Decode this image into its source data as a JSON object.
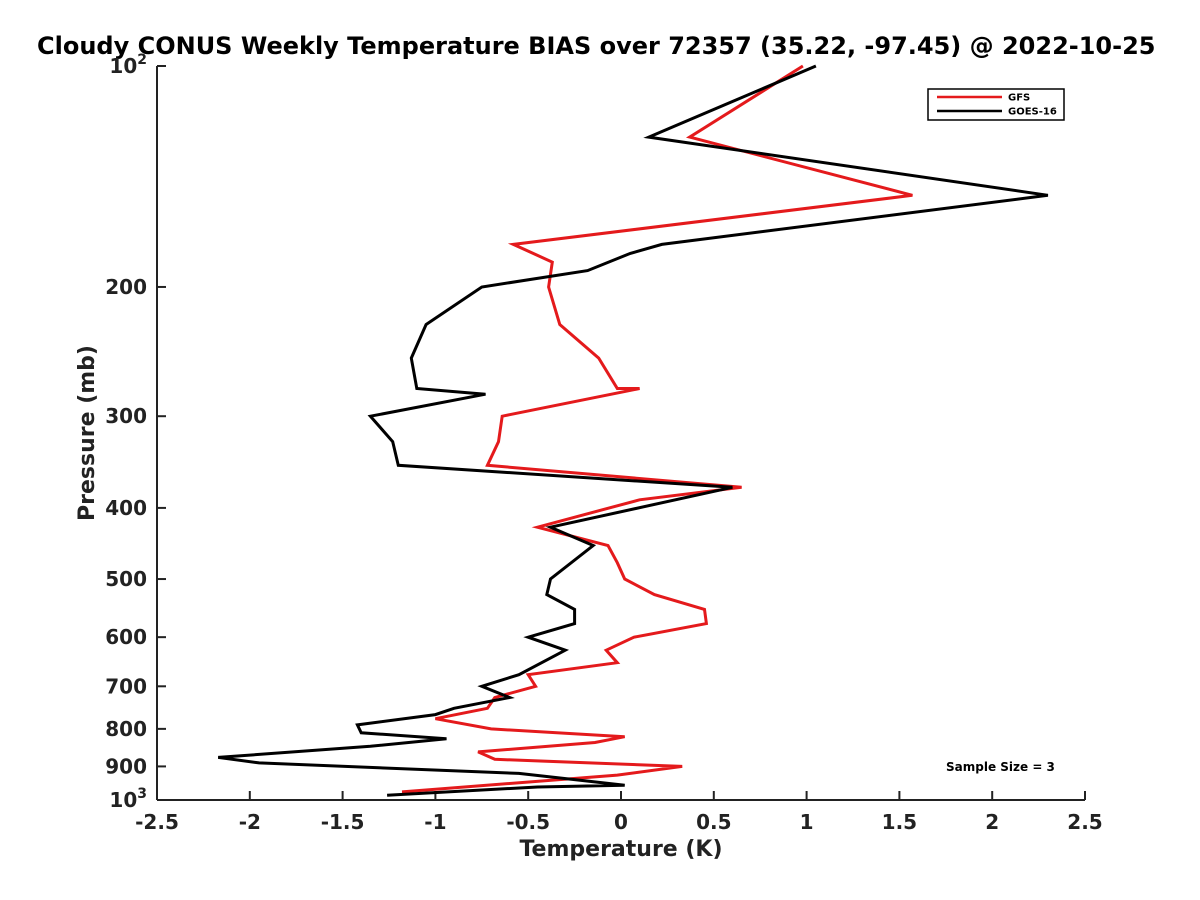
{
  "chart_data": {
    "type": "line",
    "title": "Cloudy CONUS Weekly Temperature BIAS over 72357 (35.22, -97.45) @ 2022-10-25",
    "xlabel": "Temperature (K)",
    "ylabel": "Pressure (mb)",
    "xlim": [
      -2.5,
      2.5
    ],
    "ylim": [
      1000,
      100
    ],
    "yscale": "log",
    "y_reversed": true,
    "grid": false,
    "legend_position": "top-right",
    "x_ticks": [
      "-2.5",
      "-2",
      "-1.5",
      "-1",
      "-0.5",
      "0",
      "0.5",
      "1",
      "1.5",
      "2",
      "2.5"
    ],
    "y_ticks": [
      {
        "value": 100,
        "base": "10",
        "exp": "2"
      },
      {
        "value": 200,
        "label": "200"
      },
      {
        "value": 300,
        "label": "300"
      },
      {
        "value": 400,
        "label": "400"
      },
      {
        "value": 500,
        "label": "500"
      },
      {
        "value": 600,
        "label": "600"
      },
      {
        "value": 700,
        "label": "700"
      },
      {
        "value": 800,
        "label": "800"
      },
      {
        "value": 900,
        "label": "900"
      },
      {
        "value": 1000,
        "base": "10",
        "exp": "3"
      }
    ],
    "series": [
      {
        "name": "GFS",
        "color": "#e41a1c",
        "points": [
          [
            0.98,
            100
          ],
          [
            0.37,
            125
          ],
          [
            1.57,
            150
          ],
          [
            -0.58,
            175
          ],
          [
            -0.37,
            185
          ],
          [
            -0.39,
            200
          ],
          [
            -0.33,
            225
          ],
          [
            -0.12,
            250
          ],
          [
            -0.02,
            275
          ],
          [
            0.1,
            275
          ],
          [
            -0.64,
            300
          ],
          [
            -0.66,
            325
          ],
          [
            -0.72,
            350
          ],
          [
            0.65,
            375
          ],
          [
            0.1,
            390
          ],
          [
            -0.45,
            425
          ],
          [
            -0.07,
            450
          ],
          [
            -0.02,
            475
          ],
          [
            0.02,
            500
          ],
          [
            0.18,
            525
          ],
          [
            0.45,
            550
          ],
          [
            0.46,
            575
          ],
          [
            0.07,
            600
          ],
          [
            -0.08,
            625
          ],
          [
            -0.02,
            650
          ],
          [
            -0.5,
            675
          ],
          [
            -0.46,
            700
          ],
          [
            -0.68,
            725
          ],
          [
            -0.72,
            750
          ],
          [
            -1.0,
            775
          ],
          [
            -0.7,
            800
          ],
          [
            0.02,
            820
          ],
          [
            -0.14,
            835
          ],
          [
            -0.77,
            860
          ],
          [
            -0.68,
            880
          ],
          [
            0.33,
            900
          ],
          [
            -0.02,
            925
          ],
          [
            -1.18,
            975
          ]
        ]
      },
      {
        "name": "GOES-16",
        "color": "#000000",
        "points": [
          [
            1.05,
            100
          ],
          [
            0.15,
            125
          ],
          [
            2.3,
            150
          ],
          [
            0.22,
            175
          ],
          [
            0.05,
            180
          ],
          [
            -0.18,
            190
          ],
          [
            -0.75,
            200
          ],
          [
            -1.05,
            225
          ],
          [
            -1.13,
            250
          ],
          [
            -1.1,
            275
          ],
          [
            -0.73,
            280
          ],
          [
            -1.35,
            300
          ],
          [
            -1.23,
            325
          ],
          [
            -1.2,
            350
          ],
          [
            0.6,
            375
          ],
          [
            -0.38,
            425
          ],
          [
            -0.15,
            450
          ],
          [
            -0.38,
            500
          ],
          [
            -0.4,
            525
          ],
          [
            -0.25,
            550
          ],
          [
            -0.25,
            575
          ],
          [
            -0.5,
            600
          ],
          [
            -0.3,
            625
          ],
          [
            -0.55,
            675
          ],
          [
            -0.75,
            700
          ],
          [
            -0.6,
            725
          ],
          [
            -0.9,
            750
          ],
          [
            -1.0,
            765
          ],
          [
            -1.42,
            790
          ],
          [
            -1.4,
            810
          ],
          [
            -0.94,
            825
          ],
          [
            -1.35,
            845
          ],
          [
            -2.17,
            875
          ],
          [
            -1.95,
            890
          ],
          [
            -0.55,
            920
          ],
          [
            0.02,
            955
          ],
          [
            -0.45,
            960
          ],
          [
            -1.26,
            985
          ]
        ]
      }
    ],
    "annotations": [
      "Sample Size = 3"
    ]
  }
}
